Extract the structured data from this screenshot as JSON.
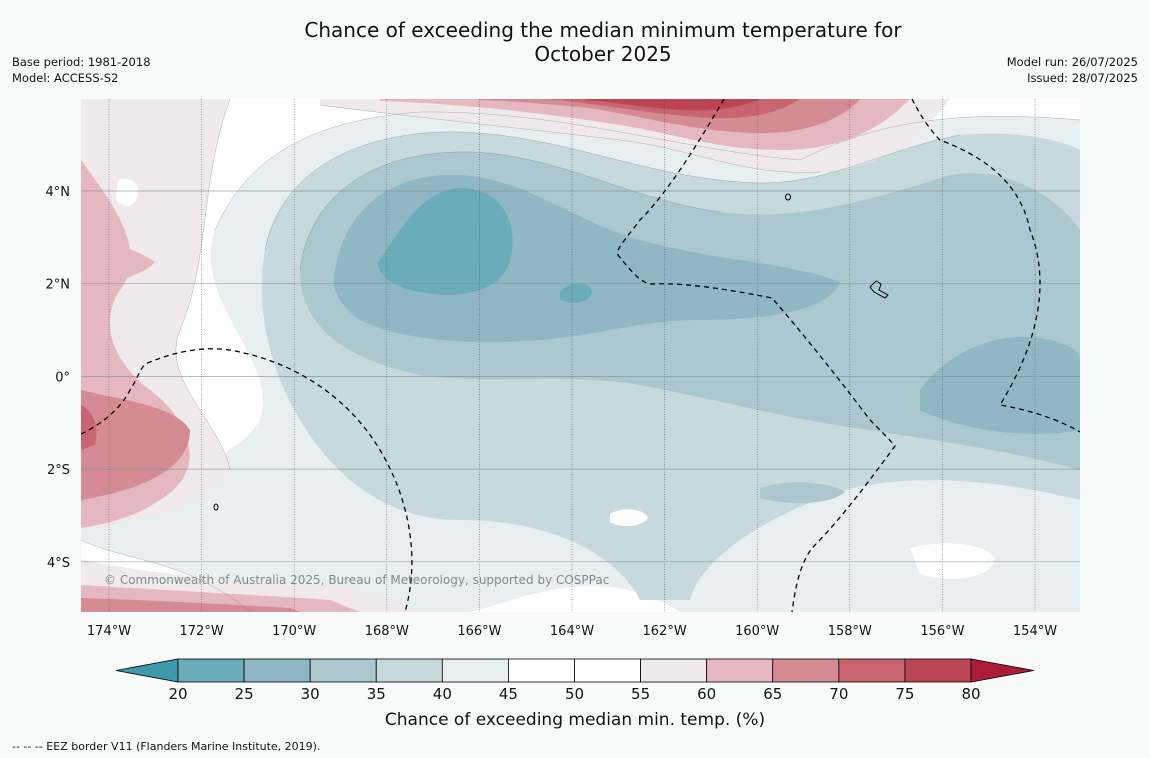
{
  "title_line1": "Chance of exceeding the median minimum temperature for",
  "title_line2": "October 2025",
  "base_period": "Base period: 1981-2018",
  "model": "Model: ACCESS-S2",
  "model_run": "Model run: 26/07/2025",
  "issued": "Issued: 28/07/2025",
  "copyright": "© Commonwealth of Australia 2025, Bureau of Meteorology, supported by COSPPac",
  "footnote": "-- -- -- EEZ border V11 (Flanders Marine Institute, 2019).",
  "lon_labels": [
    "174°W",
    "172°W",
    "170°W",
    "168°W",
    "166°W",
    "164°W",
    "162°W",
    "160°W",
    "158°W",
    "156°W",
    "154°W"
  ],
  "lat_labels": [
    "4°N",
    "2°N",
    "0°",
    "2°S",
    "4°S"
  ],
  "colorbar": {
    "label": "Chance of exceeding median min. temp. (%)",
    "ticks": [
      "20",
      "25",
      "30",
      "35",
      "40",
      "45",
      "50",
      "55",
      "60",
      "65",
      "70",
      "75",
      "80"
    ],
    "colors": [
      "#3e9aa9",
      "#6aacb9",
      "#8fb8c4",
      "#aac8ce",
      "#c8d9dd",
      "#e8eff1",
      "#ffffff",
      "#ffffff",
      "#f1eaec",
      "#e4b8be",
      "#d48b94",
      "#c96570",
      "#bb4555",
      "#a91d3a"
    ]
  }
}
